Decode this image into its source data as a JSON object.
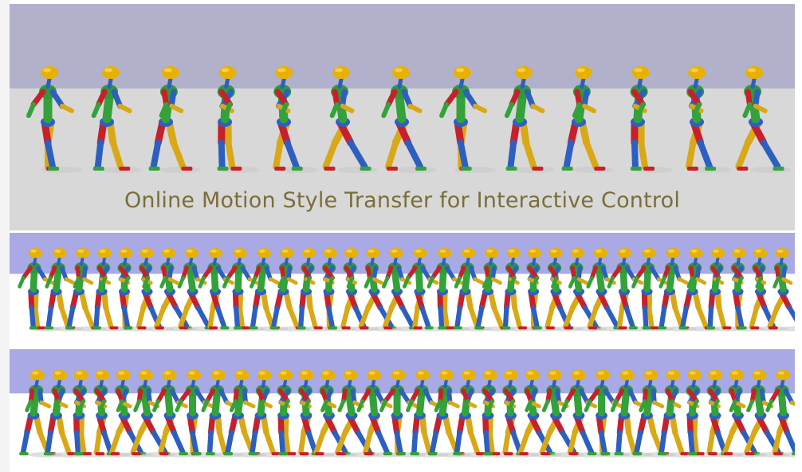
{
  "title": "Online Motion Style Transfer for Interactive Control",
  "colors": {
    "sky_top": "#b1b1cc",
    "floor_top": "#d8d8d8",
    "sky_strip": "#a9a9e6",
    "floor_strip": "#ffffff",
    "head": "#e8b100",
    "torso_green": "#2f9a3a",
    "joint_blue": "#2c5fc8",
    "limb_red": "#c8202a",
    "limb_green": "#33a23a",
    "limb_blue": "#2d5fc0",
    "limb_yellow": "#d9a816",
    "shadow": "#c9c9c9"
  },
  "figures": {
    "top_row_count": 13,
    "middle_strip_count": 34,
    "bottom_strip_count": 34
  }
}
